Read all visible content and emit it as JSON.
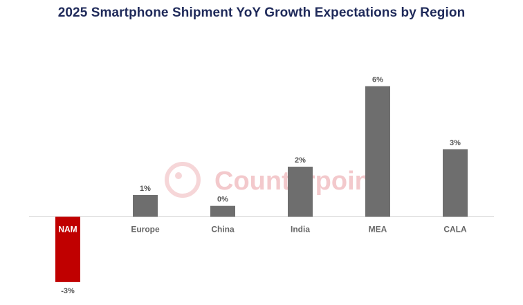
{
  "chart_data": {
    "type": "bar",
    "title": "2025 Smartphone Shipment YoY Growth Expectations by Region",
    "categories": [
      "NAM",
      "Europe",
      "China",
      "India",
      "MEA",
      "CALA"
    ],
    "values": [
      -3,
      1,
      0.5,
      2.3,
      6,
      3.1
    ],
    "value_labels": [
      "-3%",
      "1%",
      "0%",
      "2%",
      "6%",
      "3%"
    ],
    "highlight": "NAM",
    "ylim": [
      -3.1,
      6.4
    ],
    "xlabel": "",
    "ylabel": "",
    "grid": false,
    "colors": {
      "default": "#6e6e6e",
      "highlight": "#c00000",
      "axis": "#cfcfcf"
    }
  },
  "watermark": {
    "text": "Counterpoint",
    "color": "#f3c9cc"
  }
}
